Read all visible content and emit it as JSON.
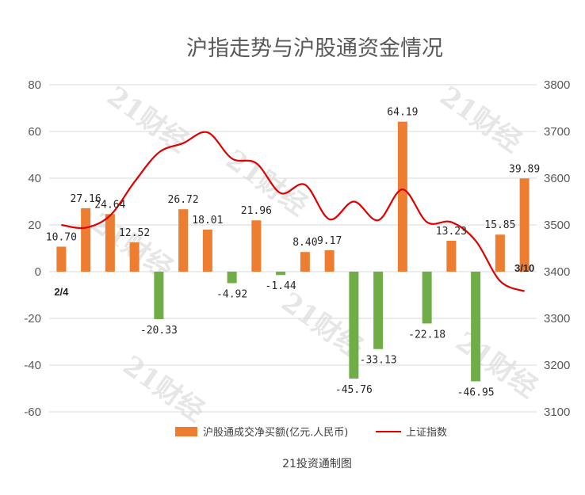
{
  "chart_data": {
    "type": "bar+line",
    "title": "沪指走势与沪股通资金情况",
    "categories": [
      "2/4",
      "",
      "",
      "",
      "",
      "",
      "",
      "",
      "",
      "",
      "",
      "",
      "",
      "",
      "",
      "",
      "",
      "",
      "",
      "3/10"
    ],
    "series": [
      {
        "name": "沪股通成交净买额(亿元.人民币)",
        "kind": "bar",
        "color": "#ED7D31",
        "negative_color": "#70AD47",
        "values": [
          10.7,
          27.16,
          24.64,
          12.52,
          -20.33,
          26.72,
          18.01,
          -4.92,
          21.96,
          -1.44,
          8.4,
          9.17,
          -45.76,
          -33.13,
          64.19,
          -22.18,
          13.23,
          -46.95,
          15.85,
          39.89
        ],
        "labels": [
          "10.70",
          "27.16",
          "24.64",
          "12.52",
          "-20.33",
          "26.72",
          "18.01",
          "-4.92",
          "21.96",
          "-1.44",
          "8.40",
          "9.17",
          "-45.76",
          "-33.13",
          "64.19",
          "-22.18",
          "13.23",
          "-46.95",
          "15.85",
          "39.89"
        ]
      },
      {
        "name": "上证指数",
        "kind": "line",
        "color": "#E00000",
        "axis": "right",
        "values": [
          3500,
          3494,
          3520,
          3592,
          3655,
          3675,
          3698,
          3642,
          3632,
          3568,
          3586,
          3512,
          3550,
          3510,
          3576,
          3506,
          3506,
          3466,
          3380,
          3358
        ]
      }
    ],
    "y_left": {
      "min": -60,
      "max": 80,
      "step": 20,
      "ticks": [
        "80",
        "60",
        "40",
        "20",
        "0",
        "-20",
        "-40",
        "-60"
      ]
    },
    "y_right": {
      "min": 3100,
      "max": 3800,
      "step": 100,
      "ticks": [
        "3800",
        "3700",
        "3600",
        "3500",
        "3400",
        "3300",
        "3200",
        "3100"
      ]
    },
    "annotations": {
      "start_date": "2/4",
      "end_date": "3/10"
    },
    "legend": {
      "position": "bottom"
    },
    "grid": true,
    "source": "21投资通制图",
    "watermark": "21财经"
  }
}
